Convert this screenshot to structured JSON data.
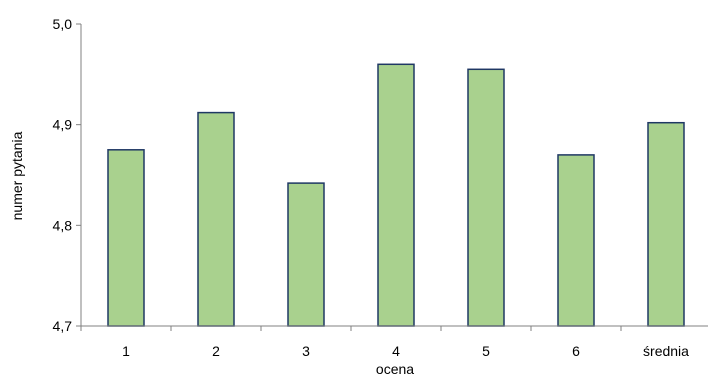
{
  "chart_data": {
    "type": "bar",
    "categories": [
      "1",
      "2",
      "3",
      "4",
      "5",
      "6",
      "średnia"
    ],
    "values": [
      4.875,
      4.912,
      4.842,
      4.96,
      4.955,
      4.87,
      4.902
    ],
    "xlabel": "ocena",
    "ylabel": "numer pytania",
    "ylim": [
      4.7,
      5.0
    ],
    "yticks": [
      "4,7",
      "4,8",
      "4,9",
      "5,0"
    ],
    "grid": false,
    "bar_fill": "#a9d18e",
    "bar_stroke": "#1f3864"
  }
}
